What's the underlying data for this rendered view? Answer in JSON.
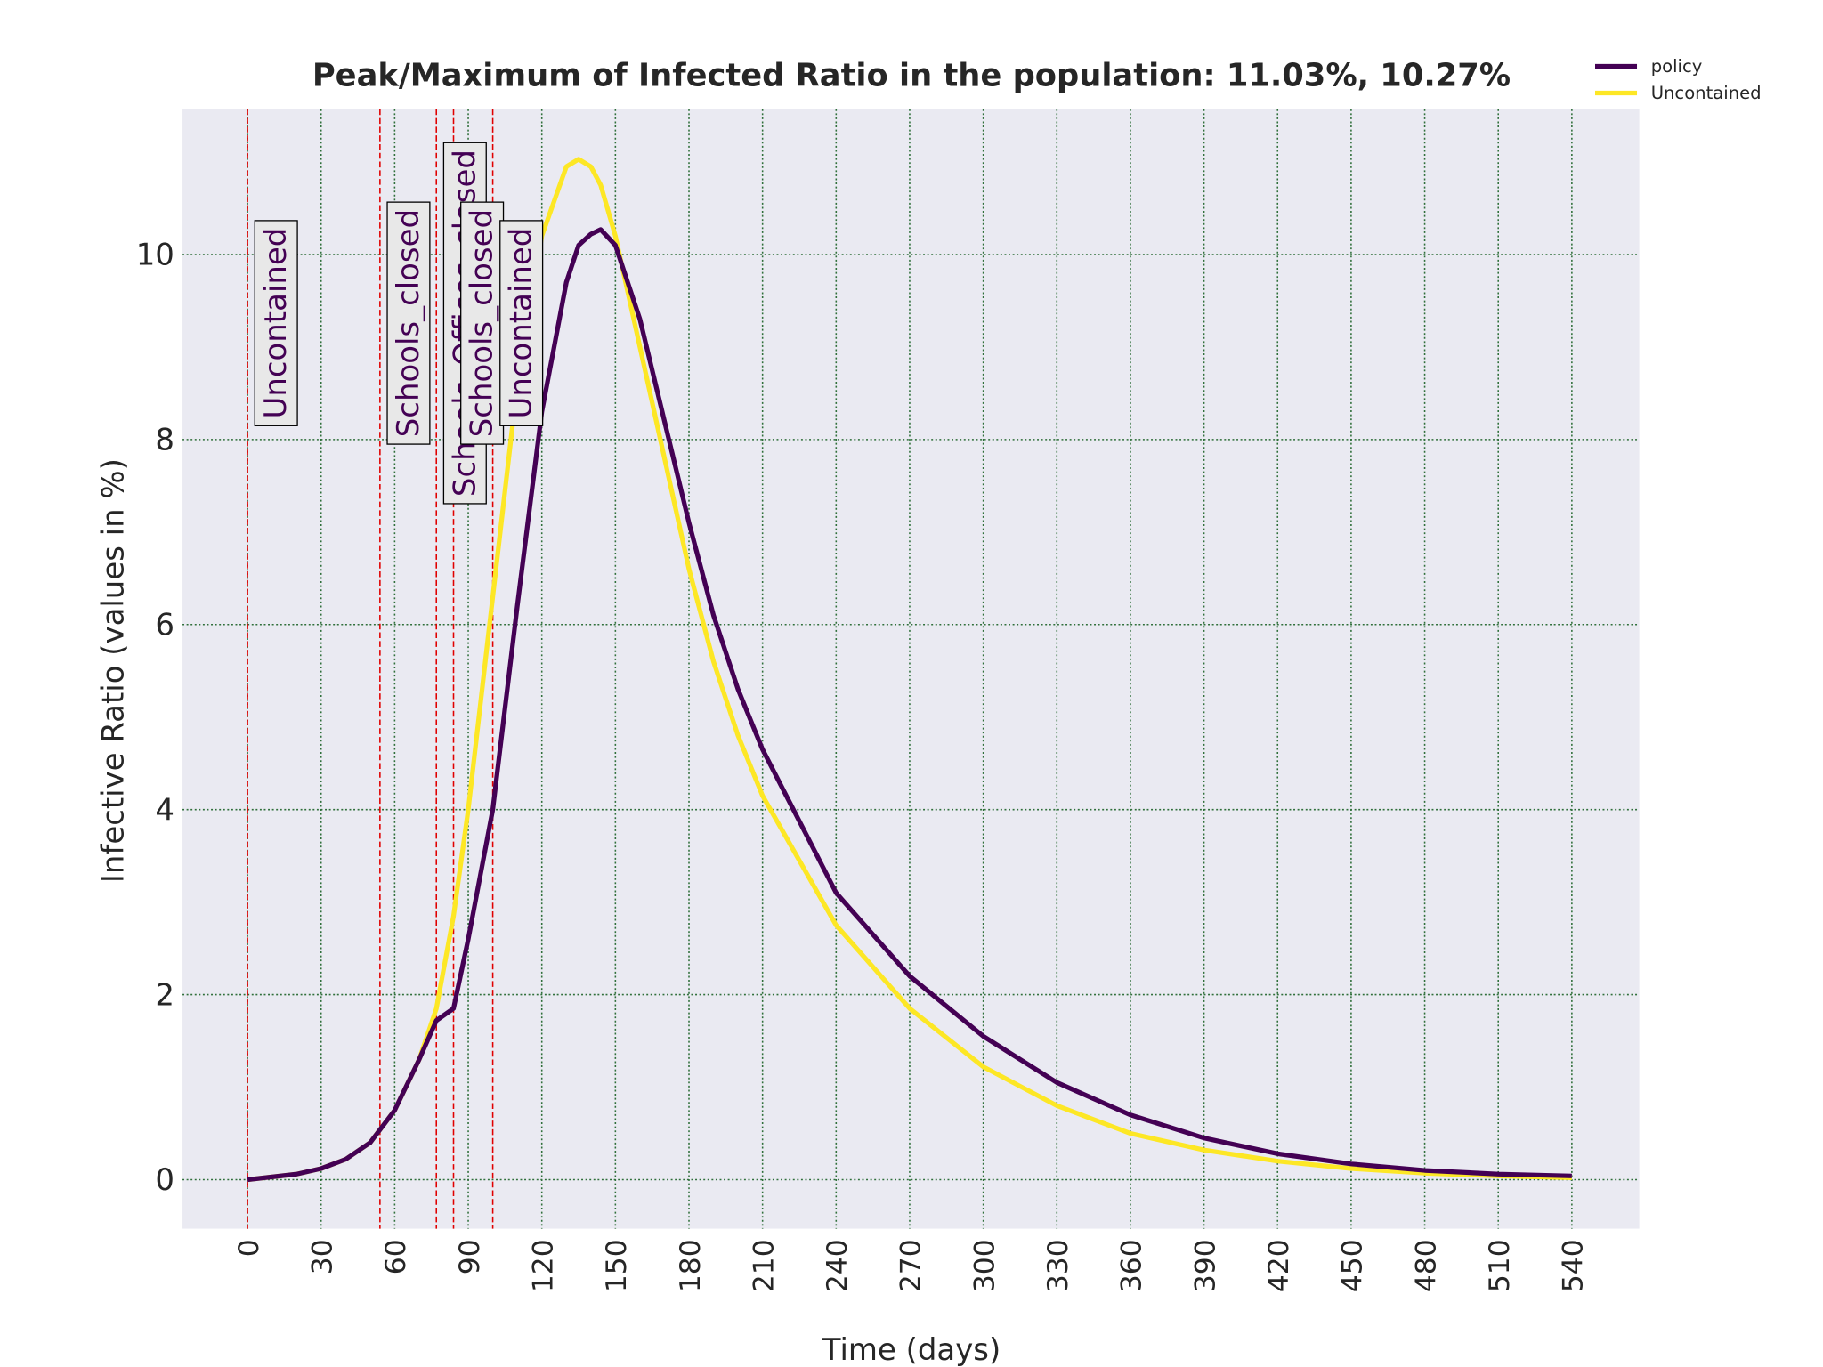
{
  "chart_data": {
    "type": "line",
    "title": "Peak/Maximum of Infected Ratio in the population: 11.03%, 10.27%",
    "x_label": "Time (days)",
    "y_label": "Infective Ratio (values in %)",
    "x": [
      0,
      10,
      20,
      30,
      40,
      50,
      60,
      70,
      77,
      84,
      90,
      100,
      110,
      120,
      130,
      135,
      140,
      144,
      150,
      160,
      170,
      180,
      190,
      200,
      210,
      240,
      270,
      300,
      330,
      360,
      390,
      420,
      450,
      480,
      510,
      540
    ],
    "series": [
      {
        "name": "policy",
        "color": "#440154",
        "values": [
          0,
          0.03,
          0.06,
          0.12,
          0.22,
          0.4,
          0.75,
          1.3,
          1.72,
          1.85,
          2.6,
          4.0,
          6.2,
          8.3,
          9.7,
          10.1,
          10.22,
          10.27,
          10.1,
          9.3,
          8.2,
          7.1,
          6.1,
          5.3,
          4.65,
          3.1,
          2.2,
          1.55,
          1.05,
          0.7,
          0.45,
          0.28,
          0.17,
          0.1,
          0.06,
          0.04
        ]
      },
      {
        "name": "Uncontained",
        "color": "#fde725",
        "values": [
          0,
          0.03,
          0.06,
          0.12,
          0.22,
          0.4,
          0.75,
          1.3,
          1.85,
          2.85,
          4.0,
          6.3,
          8.6,
          10.2,
          10.95,
          11.03,
          10.95,
          10.75,
          10.2,
          9.0,
          7.8,
          6.6,
          5.6,
          4.8,
          4.15,
          2.75,
          1.85,
          1.22,
          0.8,
          0.5,
          0.32,
          0.2,
          0.12,
          0.07,
          0.04,
          0.02
        ]
      }
    ],
    "annotations": [
      {
        "x": 0,
        "label": "Uncontained"
      },
      {
        "x": 54,
        "label": "Schools_closed"
      },
      {
        "x": 77,
        "label": "Schools_Offices_closed"
      },
      {
        "x": 84,
        "label": "Schools_closed"
      },
      {
        "x": 100,
        "label": "Uncontained"
      }
    ],
    "annotation_line_color": "#e00000",
    "annotation_text_color": "#440154",
    "xlim": [
      -26.5,
      567.5
    ],
    "ylim": [
      -0.53,
      11.57
    ],
    "xticks": [
      0,
      30,
      60,
      90,
      120,
      150,
      180,
      210,
      240,
      270,
      300,
      330,
      360,
      390,
      420,
      450,
      480,
      510,
      540
    ],
    "yticks": [
      0,
      2,
      4,
      6,
      8,
      10
    ],
    "grid": true,
    "legend": "upper right"
  }
}
